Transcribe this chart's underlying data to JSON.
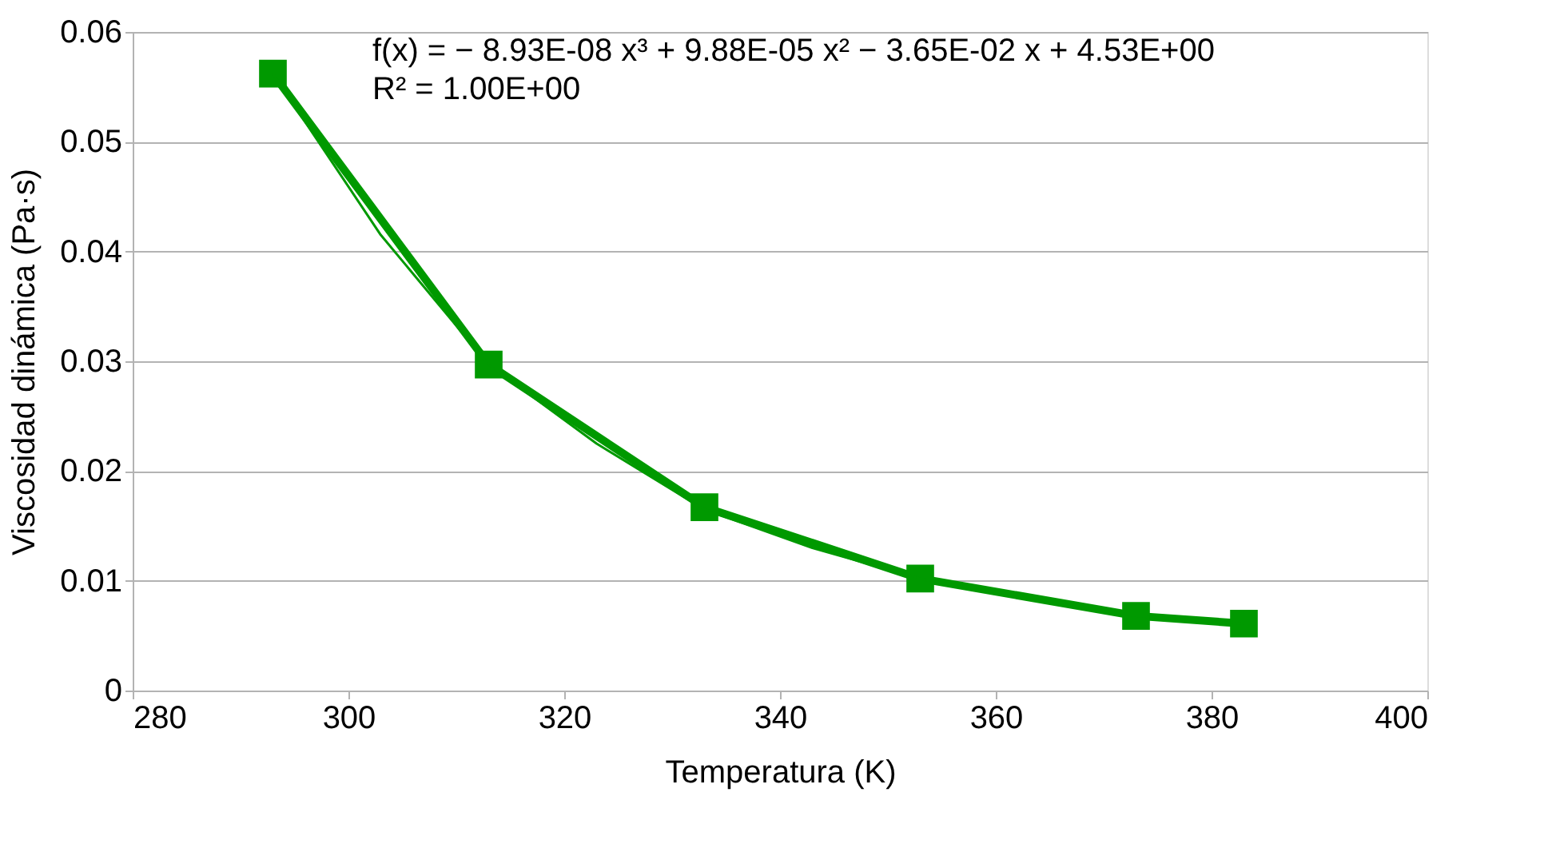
{
  "chart_data": {
    "type": "line",
    "xlabel": "Temperatura (K)",
    "ylabel": "Viscosidad dinámica (Pa·s)",
    "xlim": [
      280,
      400
    ],
    "xticks": [
      280,
      300,
      320,
      340,
      360,
      380,
      400
    ],
    "ylim": [
      0,
      0.06
    ],
    "yticks": [
      0,
      0.01,
      0.02,
      0.03,
      0.04,
      0.05,
      0.06
    ],
    "grid": "y",
    "marker": "square",
    "line_style": "solid",
    "x": [
      293,
      313,
      333,
      353,
      373,
      383
    ],
    "series": [
      {
        "color": "#009900",
        "values": [
          0.0562,
          0.0297,
          0.0167,
          0.0102,
          0.0068,
          0.0061
        ]
      },
      {
        "type": "line",
        "marker": "none",
        "color": "#009900",
        "x": [
          293,
          303,
          313,
          323,
          333,
          343,
          353,
          363,
          373,
          378,
          383
        ],
        "values": [
          0.0562,
          0.0415,
          0.0297,
          0.0225,
          0.0165,
          0.013,
          0.0102,
          0.0083,
          0.0068,
          0.0064,
          0.0061
        ]
      }
    ],
    "annotations": [
      "f(x) = − 8.93E-08 x³ + 9.88E-05 x² − 3.65E-02 x + 4.53E+00",
      "R² = 1.00E+00"
    ]
  }
}
